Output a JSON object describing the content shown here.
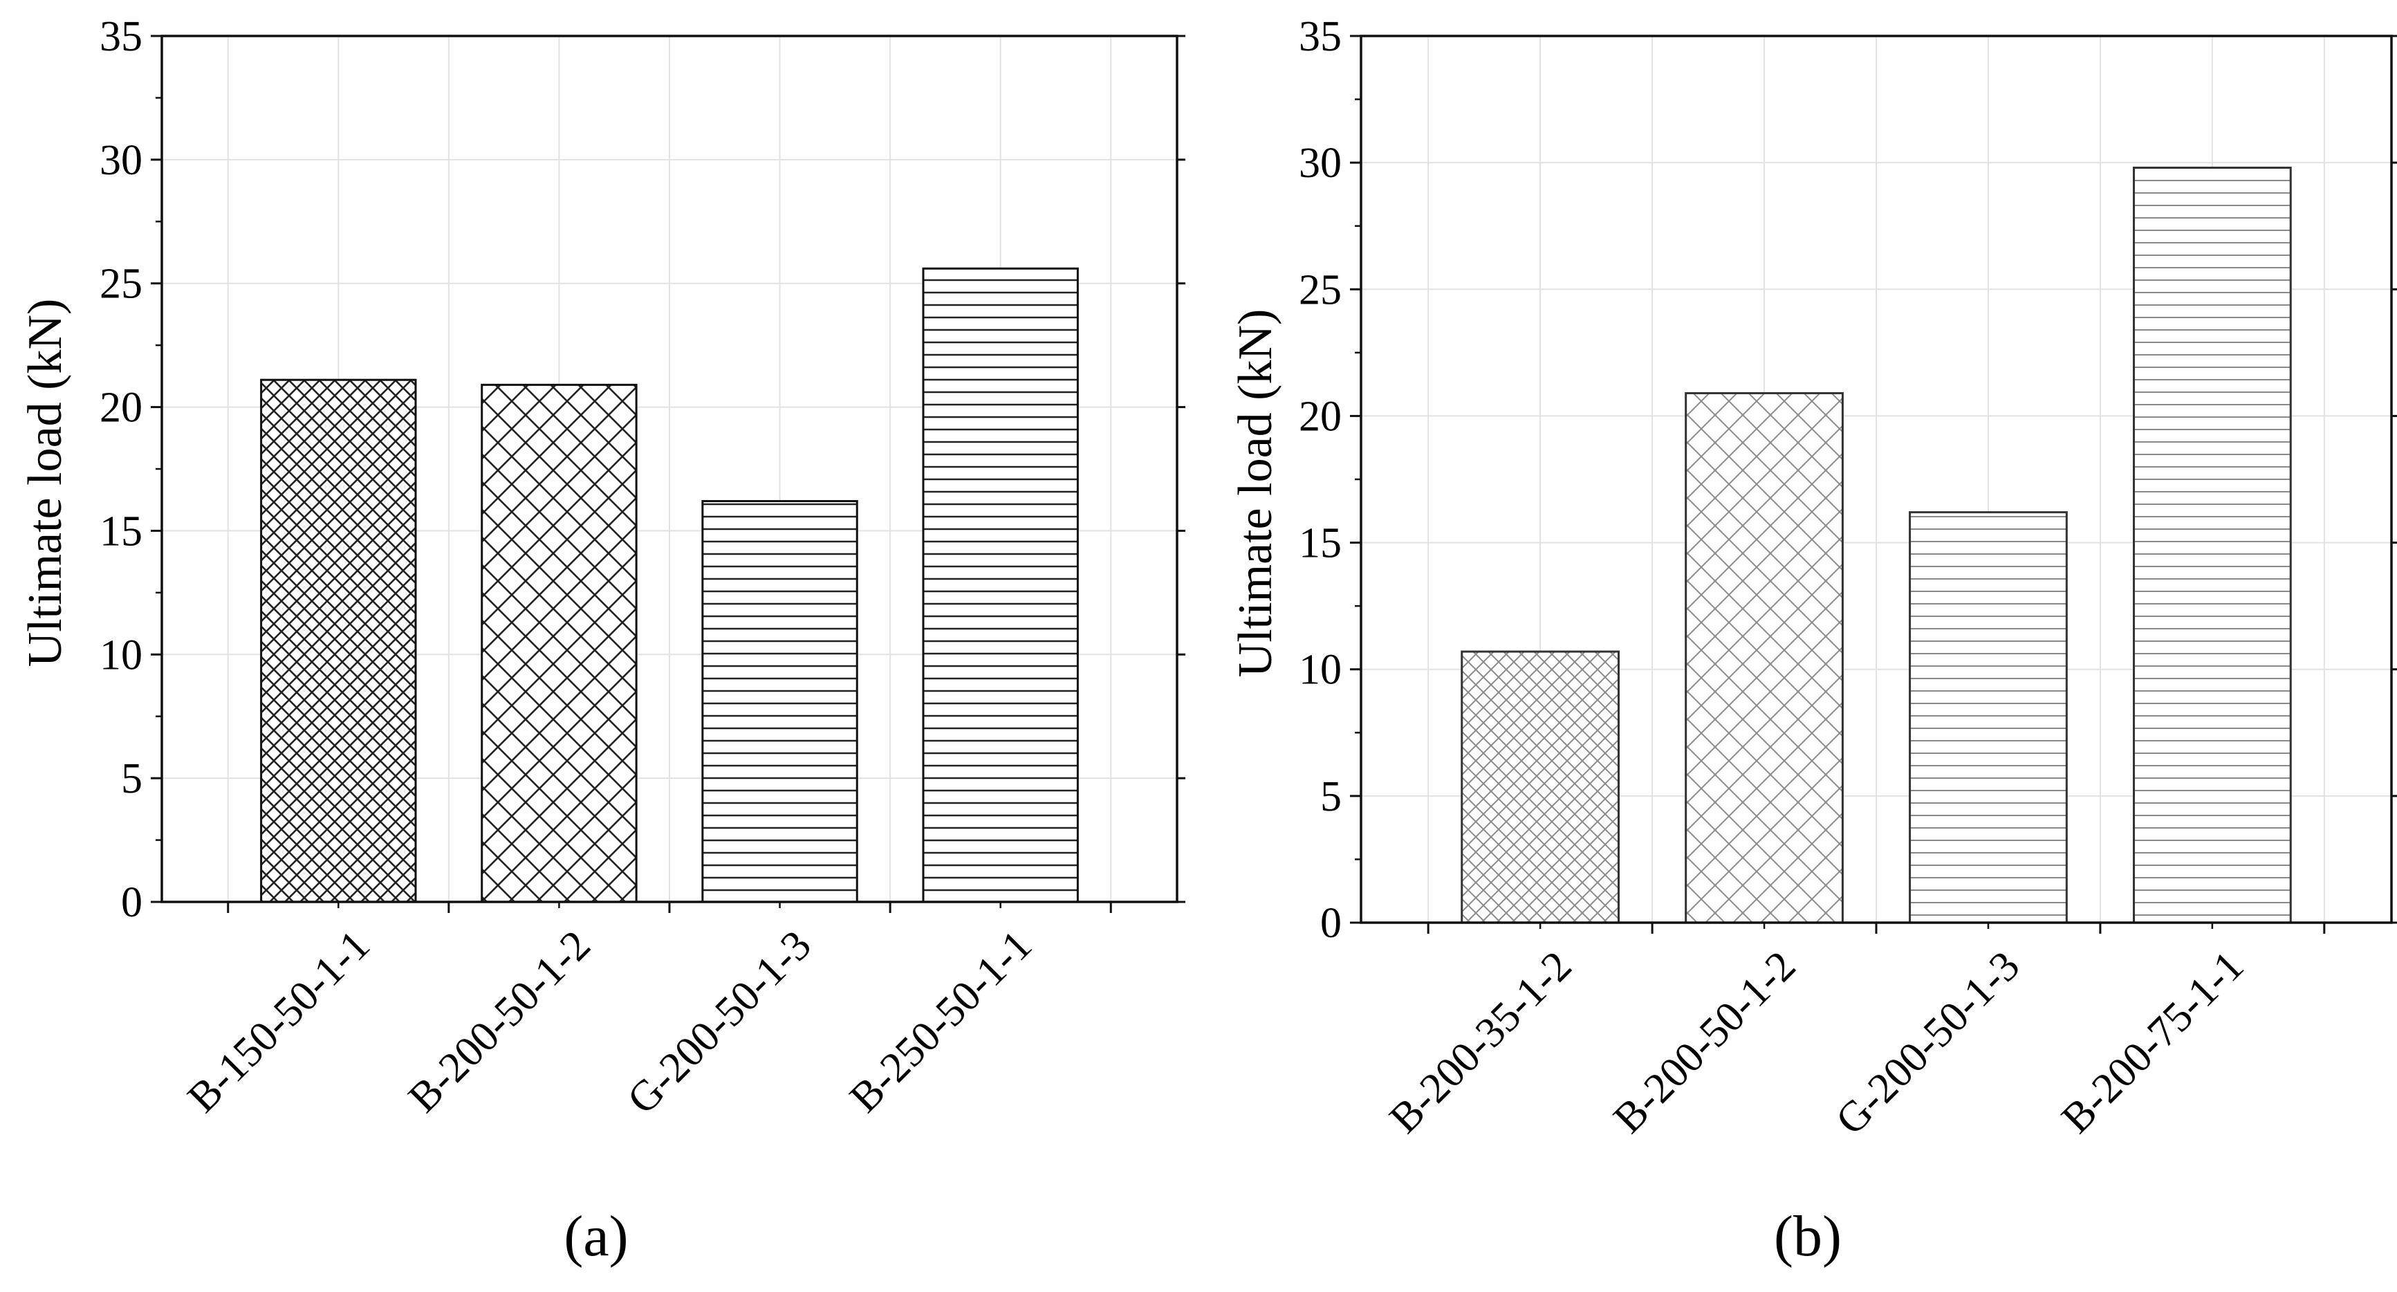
{
  "figure": {
    "panels": [
      "(a)",
      "(b)"
    ]
  },
  "chart_data": [
    {
      "type": "bar",
      "panel_label": "(a)",
      "categories": [
        "B-150-50-1-1",
        "B-200-50-1-2",
        "G-200-50-1-3",
        "B-250-50-1-1"
      ],
      "values": [
        21.1,
        20.9,
        16.2,
        25.6
      ],
      "patterns": [
        "crosshatch-dense",
        "crosshatch-wide",
        "horizontal",
        "horizontal"
      ],
      "ylabel": "Ultimate load (kN)",
      "xlabel": "",
      "ylim": [
        0,
        35
      ],
      "yticks": [
        0,
        5,
        10,
        15,
        20,
        25,
        30,
        35
      ],
      "grid": true,
      "style": "dark"
    },
    {
      "type": "bar",
      "panel_label": "(b)",
      "categories": [
        "B-200-35-1-2",
        "B-200-50-1-2",
        "G-200-50-1-3",
        "B-200-75-1-1"
      ],
      "values": [
        10.7,
        20.9,
        16.2,
        29.8
      ],
      "patterns": [
        "crosshatch-dense",
        "crosshatch-wide",
        "horizontal",
        "horizontal"
      ],
      "ylabel": "Ultimate load (kN)",
      "xlabel": "",
      "ylim": [
        0,
        35
      ],
      "yticks": [
        0,
        5,
        10,
        15,
        20,
        25,
        30,
        35
      ],
      "grid": true,
      "style": "light"
    }
  ]
}
